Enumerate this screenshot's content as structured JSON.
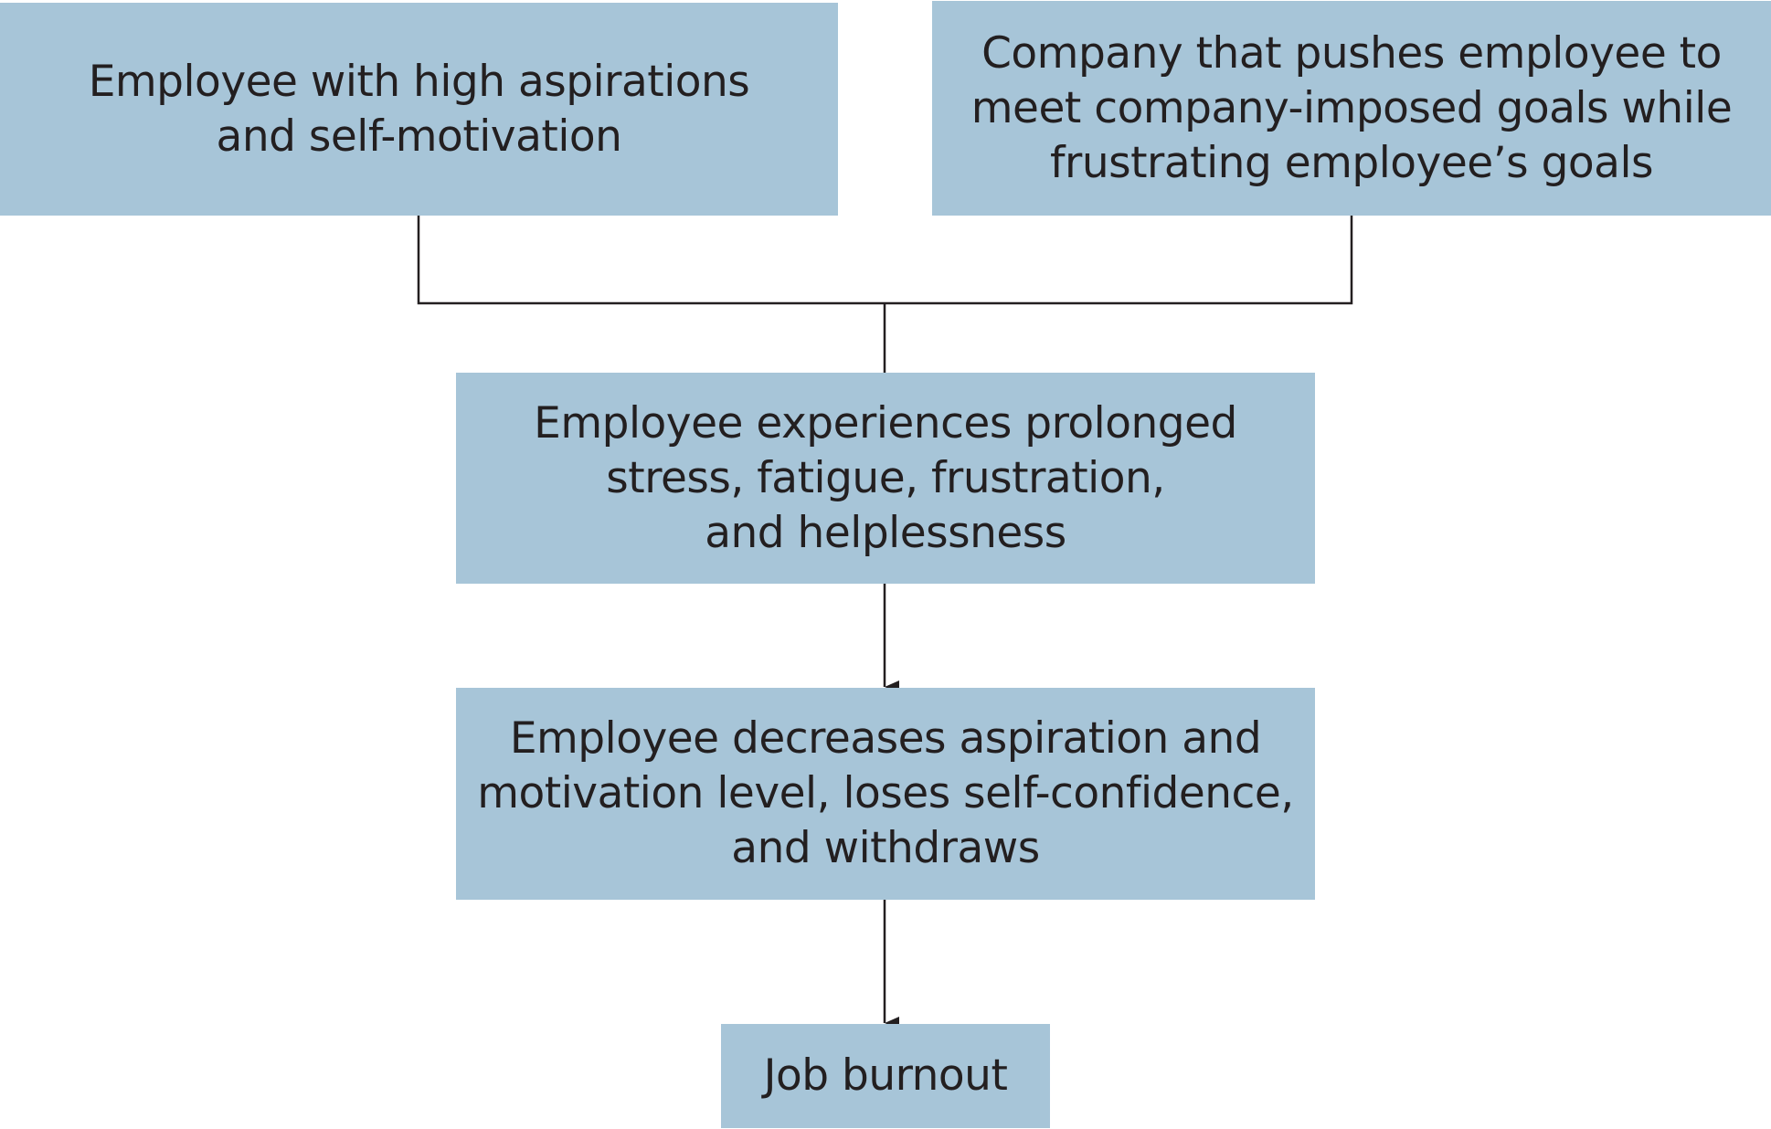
{
  "nodes": {
    "n1": "Employee with high aspirations\nand self-motivation",
    "n2": "Company that pushes employee to\nmeet company-imposed goals while\nfrustrating employee’s goals",
    "n3": "Employee experiences prolonged\nstress, fatigue, frustration,\nand helplessness",
    "n4": "Employee decreases aspiration and\nmotivation level, loses self-confidence,\nand withdraws",
    "n5": "Job burnout"
  },
  "edges": [
    {
      "from": "n1",
      "to": "n3",
      "type": "merge-line"
    },
    {
      "from": "n2",
      "to": "n3",
      "type": "merge-line"
    },
    {
      "from": "n3",
      "to": "n4",
      "type": "arrow"
    },
    {
      "from": "n4",
      "to": "n5",
      "type": "arrow"
    }
  ],
  "colors": {
    "box_fill": "#a7c5d8",
    "text": "#231f20",
    "connector": "#231f20",
    "background": "#ffffff"
  }
}
